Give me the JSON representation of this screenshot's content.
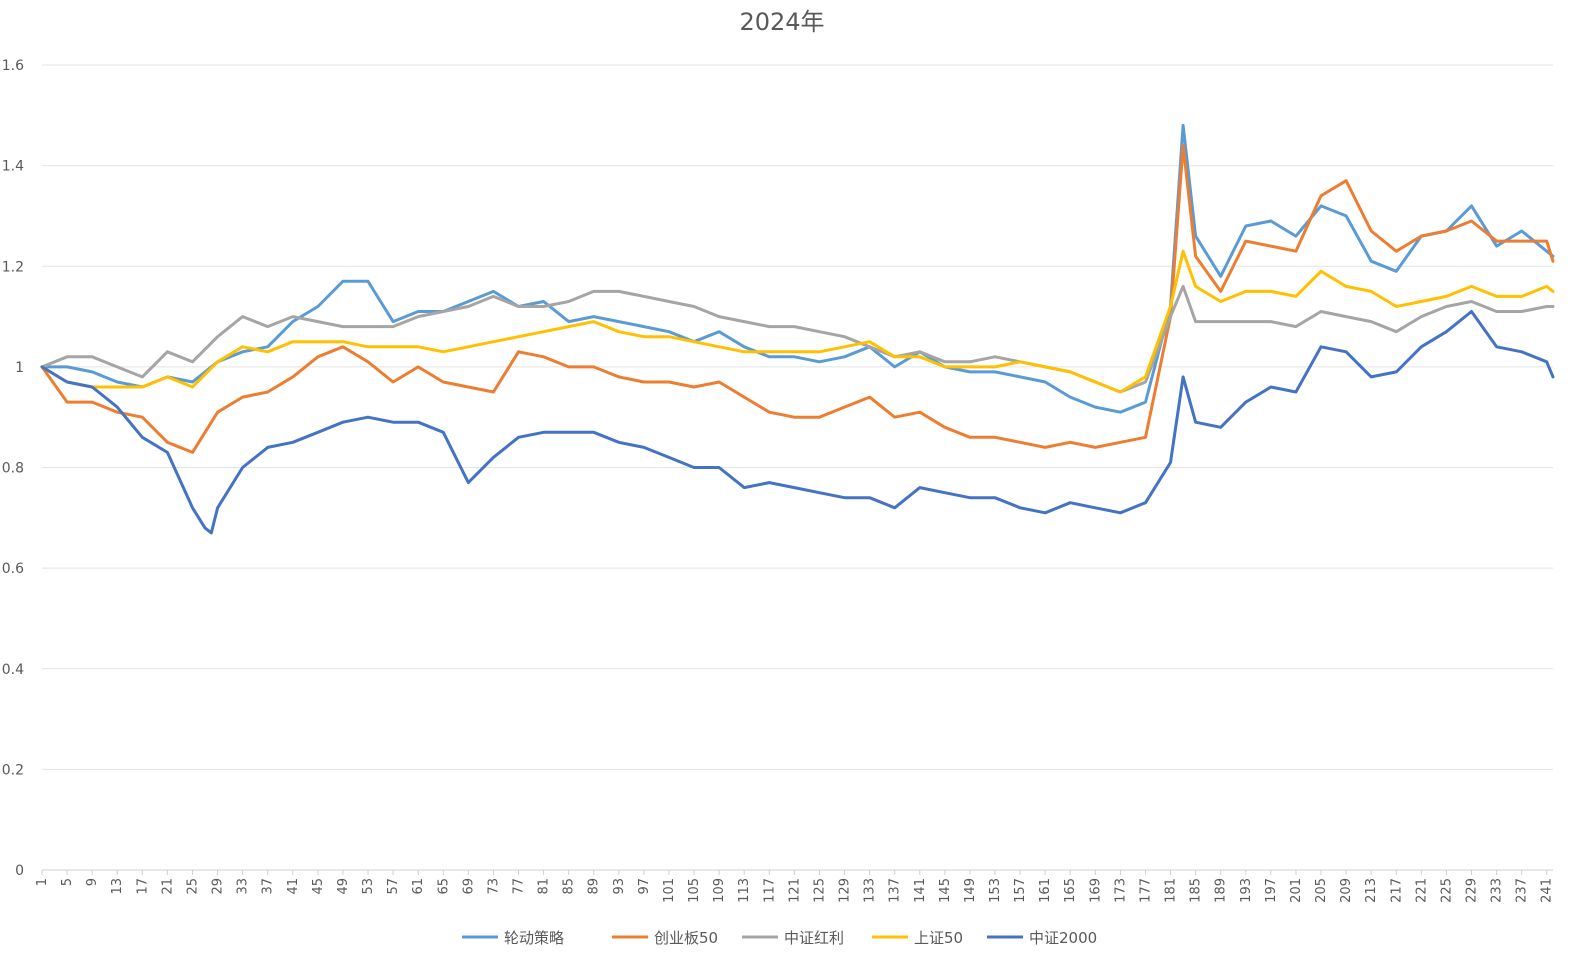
{
  "chart_data": {
    "type": "line",
    "title": "2024年",
    "xlabel": "",
    "ylabel": "",
    "ylim": [
      0,
      1.6
    ],
    "yticks": [
      0,
      0.2,
      0.4,
      0.6,
      0.8,
      1,
      1.2,
      1.4,
      1.6
    ],
    "ytick_labels": [
      "0",
      "0.2",
      "0.4",
      "0.6",
      "0.8",
      "1",
      "1.2",
      "1.4",
      "1.6"
    ],
    "x_range": [
      1,
      242
    ],
    "xticks": [
      1,
      5,
      9,
      13,
      17,
      21,
      25,
      29,
      33,
      37,
      41,
      45,
      49,
      53,
      57,
      61,
      65,
      69,
      73,
      77,
      81,
      85,
      89,
      93,
      97,
      101,
      105,
      109,
      113,
      117,
      121,
      125,
      129,
      133,
      137,
      141,
      145,
      149,
      153,
      157,
      161,
      165,
      169,
      173,
      177,
      181,
      185,
      189,
      193,
      197,
      201,
      205,
      209,
      213,
      217,
      221,
      225,
      229,
      233,
      237,
      241
    ],
    "xtick_labels": [
      "1",
      "5",
      "9",
      "13",
      "17",
      "21",
      "25",
      "29",
      "33",
      "37",
      "41",
      "45",
      "49",
      "53",
      "57",
      "61",
      "65",
      "69",
      "73",
      "77",
      "81",
      "85",
      "89",
      "93",
      "97",
      "101",
      "105",
      "109",
      "113",
      "117",
      "121",
      "125",
      "129",
      "133",
      "137",
      "141",
      "145",
      "149",
      "153",
      "157",
      "161",
      "165",
      "169",
      "173",
      "177",
      "181",
      "185",
      "189",
      "193",
      "197",
      "201",
      "205",
      "209",
      "213",
      "217",
      "221",
      "225",
      "229",
      "233",
      "237",
      "241"
    ],
    "grid": true,
    "legend_position": "bottom",
    "series": [
      {
        "name": "轮动策略",
        "color": "#5B9BD5",
        "x": [
          1,
          5,
          9,
          13,
          17,
          21,
          25,
          29,
          33,
          37,
          41,
          45,
          49,
          53,
          57,
          61,
          65,
          69,
          73,
          77,
          81,
          85,
          89,
          93,
          97,
          101,
          105,
          109,
          113,
          117,
          121,
          125,
          129,
          133,
          137,
          141,
          145,
          149,
          153,
          157,
          161,
          165,
          169,
          173,
          177,
          181,
          183,
          185,
          189,
          193,
          197,
          201,
          205,
          209,
          213,
          217,
          221,
          225,
          229,
          233,
          237,
          241,
          242
        ],
        "y": [
          1,
          1.0,
          0.99,
          0.97,
          0.96,
          0.98,
          0.97,
          1.01,
          1.03,
          1.04,
          1.09,
          1.12,
          1.17,
          1.17,
          1.09,
          1.11,
          1.11,
          1.13,
          1.15,
          1.12,
          1.13,
          1.09,
          1.1,
          1.09,
          1.08,
          1.07,
          1.05,
          1.07,
          1.04,
          1.02,
          1.02,
          1.01,
          1.02,
          1.04,
          1.0,
          1.03,
          1.0,
          0.99,
          0.99,
          0.98,
          0.97,
          0.94,
          0.92,
          0.91,
          0.93,
          1.12,
          1.48,
          1.26,
          1.18,
          1.28,
          1.29,
          1.26,
          1.32,
          1.3,
          1.21,
          1.19,
          1.26,
          1.27,
          1.32,
          1.24,
          1.27,
          1.23,
          1.22
        ]
      },
      {
        "name": "创业板50",
        "color": "#ED7D31",
        "x": [
          1,
          5,
          9,
          13,
          17,
          21,
          25,
          29,
          33,
          37,
          41,
          45,
          49,
          53,
          57,
          61,
          65,
          69,
          73,
          77,
          81,
          85,
          89,
          93,
          97,
          101,
          105,
          109,
          113,
          117,
          121,
          125,
          129,
          133,
          137,
          141,
          145,
          149,
          153,
          157,
          161,
          165,
          169,
          173,
          177,
          181,
          183,
          185,
          189,
          193,
          197,
          201,
          205,
          209,
          213,
          217,
          221,
          225,
          229,
          233,
          237,
          241,
          242
        ],
        "y": [
          1,
          0.93,
          0.93,
          0.91,
          0.9,
          0.85,
          0.83,
          0.91,
          0.94,
          0.95,
          0.98,
          1.02,
          1.04,
          1.01,
          0.97,
          1.0,
          0.97,
          0.96,
          0.95,
          1.03,
          1.02,
          1.0,
          1.0,
          0.98,
          0.97,
          0.97,
          0.96,
          0.97,
          0.94,
          0.91,
          0.9,
          0.9,
          0.92,
          0.94,
          0.9,
          0.91,
          0.88,
          0.86,
          0.86,
          0.85,
          0.84,
          0.85,
          0.84,
          0.85,
          0.86,
          1.1,
          1.44,
          1.22,
          1.15,
          1.25,
          1.24,
          1.23,
          1.34,
          1.37,
          1.27,
          1.23,
          1.26,
          1.27,
          1.29,
          1.25,
          1.25,
          1.25,
          1.21
        ]
      },
      {
        "name": "中证红利",
        "color": "#A5A5A5",
        "x": [
          1,
          5,
          9,
          13,
          17,
          21,
          25,
          29,
          33,
          37,
          41,
          45,
          49,
          53,
          57,
          61,
          65,
          69,
          73,
          77,
          81,
          85,
          89,
          93,
          97,
          101,
          105,
          109,
          113,
          117,
          121,
          125,
          129,
          133,
          137,
          141,
          145,
          149,
          153,
          157,
          161,
          165,
          169,
          173,
          177,
          181,
          183,
          185,
          189,
          193,
          197,
          201,
          205,
          209,
          213,
          217,
          221,
          225,
          229,
          233,
          237,
          241,
          242
        ],
        "y": [
          1,
          1.02,
          1.02,
          1.0,
          0.98,
          1.03,
          1.01,
          1.06,
          1.1,
          1.08,
          1.1,
          1.09,
          1.08,
          1.08,
          1.08,
          1.1,
          1.11,
          1.12,
          1.14,
          1.12,
          1.12,
          1.13,
          1.15,
          1.15,
          1.14,
          1.13,
          1.12,
          1.1,
          1.09,
          1.08,
          1.08,
          1.07,
          1.06,
          1.04,
          1.02,
          1.03,
          1.01,
          1.01,
          1.02,
          1.01,
          1.0,
          0.99,
          0.97,
          0.95,
          0.97,
          1.1,
          1.16,
          1.09,
          1.09,
          1.09,
          1.09,
          1.08,
          1.11,
          1.1,
          1.09,
          1.07,
          1.1,
          1.12,
          1.13,
          1.11,
          1.11,
          1.12,
          1.12
        ]
      },
      {
        "name": "上证50",
        "color": "#FFC000",
        "x": [
          1,
          5,
          9,
          13,
          17,
          21,
          25,
          29,
          33,
          37,
          41,
          45,
          49,
          53,
          57,
          61,
          65,
          69,
          73,
          77,
          81,
          85,
          89,
          93,
          97,
          101,
          105,
          109,
          113,
          117,
          121,
          125,
          129,
          133,
          137,
          141,
          145,
          149,
          153,
          157,
          161,
          165,
          169,
          173,
          177,
          181,
          183,
          185,
          189,
          193,
          197,
          201,
          205,
          209,
          213,
          217,
          221,
          225,
          229,
          233,
          237,
          241,
          242
        ],
        "y": [
          1,
          0.97,
          0.96,
          0.96,
          0.96,
          0.98,
          0.96,
          1.01,
          1.04,
          1.03,
          1.05,
          1.05,
          1.05,
          1.04,
          1.04,
          1.04,
          1.03,
          1.04,
          1.05,
          1.06,
          1.07,
          1.08,
          1.09,
          1.07,
          1.06,
          1.06,
          1.05,
          1.04,
          1.03,
          1.03,
          1.03,
          1.03,
          1.04,
          1.05,
          1.02,
          1.02,
          1.0,
          1.0,
          1.0,
          1.01,
          1.0,
          0.99,
          0.97,
          0.95,
          0.98,
          1.12,
          1.23,
          1.16,
          1.13,
          1.15,
          1.15,
          1.14,
          1.19,
          1.16,
          1.15,
          1.12,
          1.13,
          1.14,
          1.16,
          1.14,
          1.14,
          1.16,
          1.15
        ]
      },
      {
        "name": "中证2000",
        "color": "#4472C4",
        "x": [
          1,
          5,
          9,
          13,
          17,
          21,
          25,
          27,
          28,
          29,
          33,
          37,
          41,
          45,
          49,
          53,
          57,
          61,
          65,
          69,
          73,
          77,
          81,
          85,
          89,
          93,
          97,
          101,
          105,
          109,
          113,
          117,
          121,
          125,
          129,
          133,
          137,
          141,
          145,
          149,
          153,
          157,
          161,
          165,
          169,
          173,
          177,
          181,
          183,
          185,
          189,
          193,
          197,
          201,
          205,
          209,
          213,
          217,
          221,
          225,
          229,
          233,
          237,
          241,
          242
        ],
        "y": [
          1,
          0.97,
          0.96,
          0.92,
          0.86,
          0.83,
          0.72,
          0.68,
          0.67,
          0.72,
          0.8,
          0.84,
          0.85,
          0.87,
          0.89,
          0.9,
          0.89,
          0.89,
          0.87,
          0.77,
          0.82,
          0.86,
          0.87,
          0.87,
          0.87,
          0.85,
          0.84,
          0.82,
          0.8,
          0.8,
          0.76,
          0.77,
          0.76,
          0.75,
          0.74,
          0.74,
          0.72,
          0.76,
          0.75,
          0.74,
          0.74,
          0.72,
          0.71,
          0.73,
          0.72,
          0.71,
          0.73,
          0.81,
          0.98,
          0.89,
          0.88,
          0.93,
          0.96,
          0.95,
          1.04,
          1.03,
          0.98,
          0.99,
          1.04,
          1.07,
          1.11,
          1.04,
          1.03,
          1.01,
          0.98
        ]
      }
    ]
  }
}
